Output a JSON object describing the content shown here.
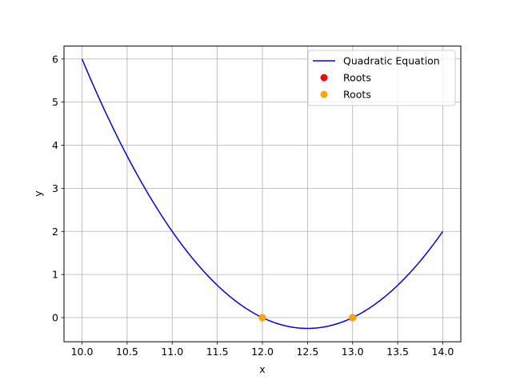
{
  "chart_data": {
    "type": "line",
    "title": "",
    "xlabel": "x",
    "ylabel": "y",
    "xlim": [
      9.8,
      14.2
    ],
    "ylim": [
      -0.56,
      6.3
    ],
    "xticks": [
      10.0,
      10.5,
      11.0,
      11.5,
      12.0,
      12.5,
      13.0,
      13.5,
      14.0
    ],
    "xtick_labels": [
      "10.0",
      "10.5",
      "11.0",
      "11.5",
      "12.0",
      "12.5",
      "13.0",
      "13.5",
      "14.0"
    ],
    "yticks": [
      0,
      1,
      2,
      3,
      4,
      5,
      6
    ],
    "ytick_labels": [
      "0",
      "1",
      "2",
      "3",
      "4",
      "5",
      "6"
    ],
    "grid": true,
    "legend_position": "top-right",
    "series": [
      {
        "name": "Quadratic Equation",
        "kind": "line",
        "color": "#0000ff",
        "function": {
          "a": 1,
          "b": -25,
          "c": 156
        },
        "x_range": [
          10.0,
          14.0
        ],
        "x": [
          10.0,
          10.5,
          11.0,
          11.5,
          12.0,
          12.5,
          13.0,
          13.5,
          14.0
        ],
        "y": [
          6.0,
          3.75,
          2.0,
          0.75,
          0.0,
          -0.25,
          0.0,
          0.75,
          2.0
        ]
      },
      {
        "name": "Roots",
        "kind": "scatter",
        "color": "#ff0000",
        "x": [
          12.0,
          13.0
        ],
        "y": [
          0,
          0
        ]
      },
      {
        "name": "Roots",
        "kind": "scatter",
        "color": "#ffa500",
        "x": [
          12.0,
          13.0
        ],
        "y": [
          0,
          0
        ]
      }
    ]
  }
}
